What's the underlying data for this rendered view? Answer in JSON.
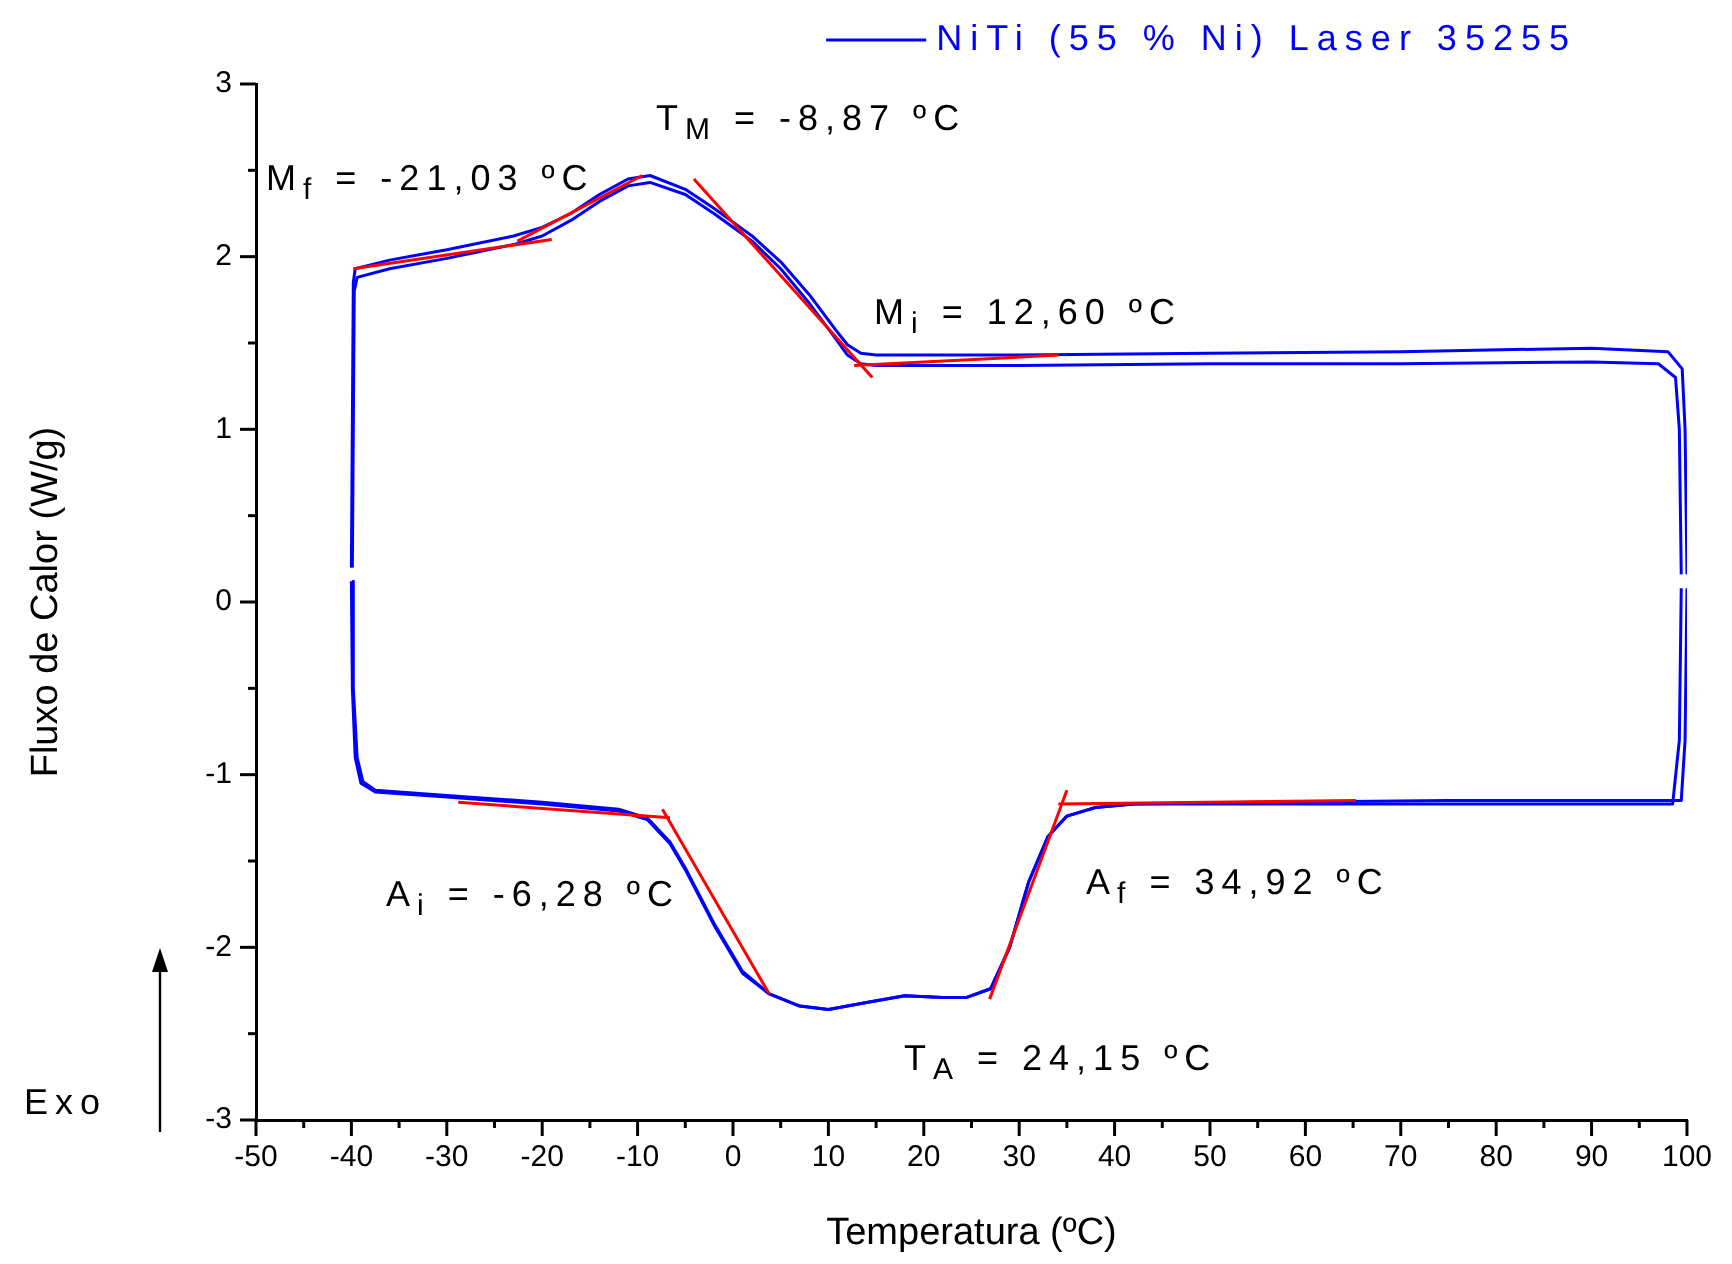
{
  "chart_data": {
    "type": "line",
    "xlabel": "Temperatura (ºC)",
    "ylabel": "Fluxo de Calor (W/g)",
    "xlim": [
      -50,
      100
    ],
    "ylim": [
      -3,
      3
    ],
    "xticks": [
      -50,
      {
        "value": -45,
        "label": null
      },
      -40,
      {
        "value": -35,
        "label": null
      },
      -30,
      {
        "value": -25,
        "label": null
      },
      -20,
      {
        "value": -15,
        "label": null
      },
      -10,
      {
        "value": -5,
        "label": null
      },
      0,
      {
        "value": 5,
        "label": null
      },
      10,
      {
        "value": 15,
        "label": null
      },
      20,
      {
        "value": 25,
        "label": null
      },
      30,
      {
        "value": 35,
        "label": null
      },
      40,
      {
        "value": 45,
        "label": null
      },
      50,
      {
        "value": 55,
        "label": null
      },
      60,
      {
        "value": 65,
        "label": null
      },
      70,
      {
        "value": 75,
        "label": null
      },
      80,
      {
        "value": 85,
        "label": null
      },
      90,
      {
        "value": 95,
        "label": null
      },
      100
    ],
    "yticks": [
      -3,
      {
        "value": -2.5,
        "label": null
      },
      -2,
      {
        "value": -1.5,
        "label": null
      },
      -1,
      {
        "value": -0.5,
        "label": null
      },
      0,
      {
        "value": 0.5,
        "label": null
      },
      1,
      {
        "value": 1.5,
        "label": null
      },
      2,
      {
        "value": 2.5,
        "label": null
      },
      3
    ],
    "grid": false,
    "legend": "top right",
    "series": [
      {
        "name": "NiTi (55 % Ni) Laser 35255",
        "color": "#0000ff",
        "x": [
          -40,
          -39.9,
          -39.6,
          -39,
          -37.5,
          -30,
          -20,
          -12,
          -9,
          -6.6,
          -5,
          -2,
          1,
          3.8,
          7,
          10,
          14,
          18,
          22,
          24.5,
          27,
          29,
          31,
          33,
          35,
          38,
          42,
          55,
          75,
          95,
          99.4,
          99.8,
          100
        ],
        "values": [
          0.12,
          -0.5,
          -0.9,
          -1.05,
          -1.1,
          -1.13,
          -1.17,
          -1.21,
          -1.26,
          -1.4,
          -1.55,
          -1.87,
          -2.15,
          -2.27,
          -2.34,
          -2.36,
          -2.32,
          -2.28,
          -2.29,
          -2.29,
          -2.24,
          -2.0,
          -1.62,
          -1.36,
          -1.24,
          -1.19,
          -1.17,
          -1.16,
          -1.15,
          -1.15,
          -1.15,
          -0.8,
          0.08
        ]
      },
      {
        "color": "#0000ff",
        "x": [
          -40,
          -39.8,
          -39.6,
          -36,
          -30,
          -23,
          -20,
          -17,
          -14,
          -11,
          -8.7,
          -5,
          -2,
          0,
          2,
          5,
          8,
          10.7,
          12,
          13.4,
          15,
          30,
          50,
          70,
          90,
          98,
          99.5,
          99.8,
          100
        ],
        "values": [
          0.2,
          1.85,
          1.93,
          1.98,
          2.04,
          2.12,
          2.17,
          2.25,
          2.36,
          2.45,
          2.47,
          2.39,
          2.28,
          2.2,
          2.12,
          1.97,
          1.78,
          1.58,
          1.49,
          1.44,
          1.43,
          1.43,
          1.44,
          1.45,
          1.47,
          1.45,
          1.35,
          1.0,
          0.16
        ]
      },
      {
        "color": "#0000ff",
        "x": [
          -39.9,
          -39.8,
          -39.4,
          -38.8,
          -37.5,
          -30,
          -20,
          -12,
          -9,
          -6.6,
          -5,
          -2,
          1,
          3.8,
          7,
          10,
          14,
          18,
          22,
          24.5,
          27,
          29,
          31,
          33,
          35,
          38,
          42,
          55,
          75,
          95,
          98.5,
          99.2,
          99.4
        ],
        "values": [
          0.12,
          -0.5,
          -0.9,
          -1.04,
          -1.09,
          -1.12,
          -1.16,
          -1.2,
          -1.25,
          -1.39,
          -1.54,
          -1.86,
          -2.14,
          -2.27,
          -2.34,
          -2.36,
          -2.32,
          -2.28,
          -2.29,
          -2.29,
          -2.24,
          -2.0,
          -1.62,
          -1.36,
          -1.24,
          -1.19,
          -1.17,
          -1.17,
          -1.17,
          -1.17,
          -1.17,
          -0.8,
          0.08
        ]
      },
      {
        "color": "#0000ff",
        "x": [
          -39.9,
          -39.7,
          -39.4,
          -36,
          -30,
          -23,
          -20,
          -17,
          -14,
          -11,
          -8.7,
          -5,
          -2,
          0,
          2,
          5,
          8,
          10.7,
          12,
          13.4,
          15,
          30,
          50,
          70,
          90,
          97,
          98.8,
          99.2,
          99.4
        ],
        "values": [
          0.2,
          1.8,
          1.88,
          1.93,
          1.99,
          2.07,
          2.12,
          2.21,
          2.32,
          2.41,
          2.43,
          2.36,
          2.25,
          2.17,
          2.09,
          1.93,
          1.73,
          1.53,
          1.43,
          1.38,
          1.37,
          1.37,
          1.38,
          1.38,
          1.39,
          1.38,
          1.3,
          1.0,
          0.16
        ]
      },
      {
        "color": "#ff0000",
        "x": [
          -39.8,
          -19
        ],
        "values": [
          1.93,
          2.1
        ]
      },
      {
        "color": "#ff0000",
        "x": [
          -22.6,
          -9.5
        ],
        "values": [
          2.09,
          2.47
        ]
      },
      {
        "color": "#ff0000",
        "x": [
          -4.1,
          14.6
        ],
        "values": [
          2.45,
          1.3
        ]
      },
      {
        "color": "#ff0000",
        "x": [
          12.7,
          34.1
        ],
        "values": [
          1.37,
          1.43
        ]
      },
      {
        "color": "#ff0000",
        "x": [
          -28.8,
          -6.6
        ],
        "values": [
          -1.16,
          -1.25
        ]
      },
      {
        "color": "#ff0000",
        "x": [
          -7.4,
          3.8
        ],
        "values": [
          -1.2,
          -2.27
        ]
      },
      {
        "color": "#ff0000",
        "x": [
          26.9,
          35
        ],
        "values": [
          -2.3,
          -1.09
        ]
      },
      {
        "color": "#ff0000",
        "x": [
          34.1,
          65.3
        ],
        "values": [
          -1.17,
          -1.15
        ]
      }
    ],
    "annotations": [
      "M$_{f}$ = -21,03 ºC",
      "T$_{M}$ = -8,87 ºC",
      "M$_{i}$ = 12,60 ºC",
      "A$_{i}$ = -6,28 ºC",
      "A$_{f}$ = 34,92 ºC",
      "T$_{A}$ = 24,15 ºC",
      "Exo"
    ]
  }
}
